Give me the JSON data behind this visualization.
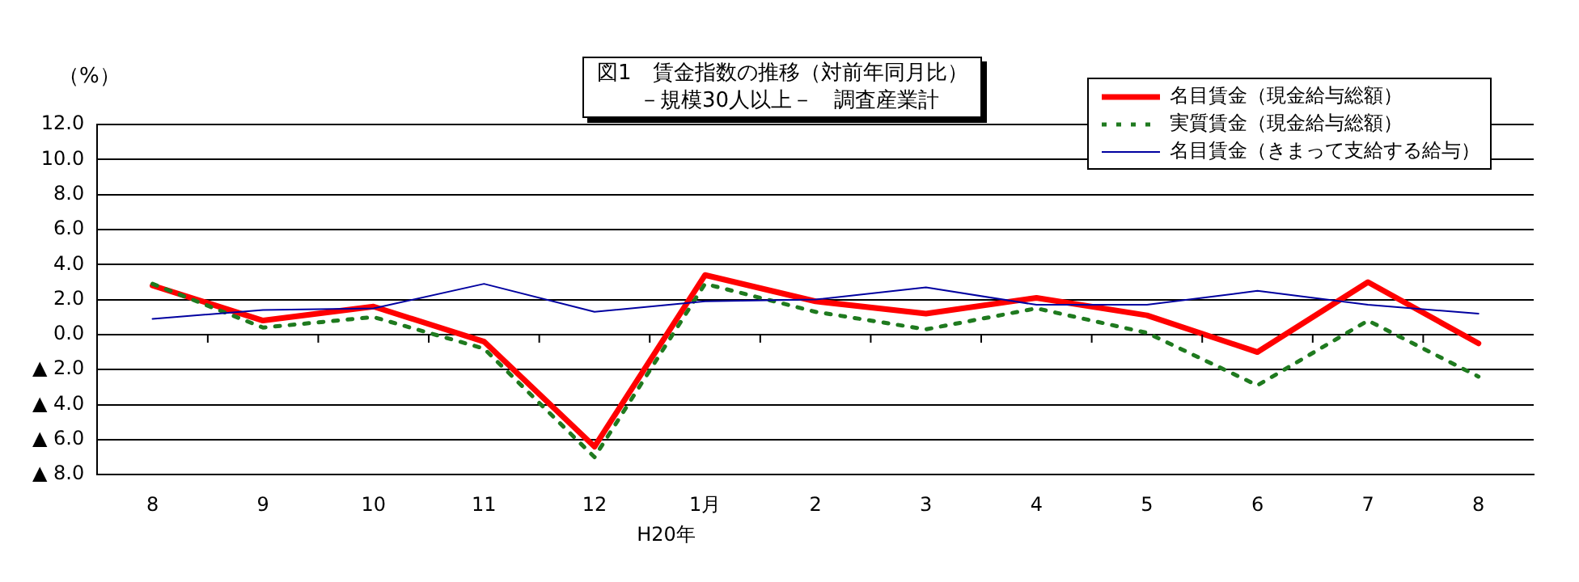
{
  "chart_data": {
    "type": "line",
    "title": "図1　賃金指数の推移（対前年同月比）",
    "subtitle": "－規模30人以上－　調査産業計",
    "ylabel": "（%）",
    "categories": [
      "8",
      "9",
      "10",
      "11",
      "12",
      "1月",
      "2",
      "3",
      "4",
      "5",
      "6",
      "7",
      "8"
    ],
    "series": [
      {
        "name": "名目賃金（現金給与総額）",
        "color": "#ff0000",
        "line_style": "solid",
        "values": [
          2.8,
          0.8,
          1.6,
          -0.4,
          -6.4,
          3.4,
          1.9,
          1.2,
          2.1,
          1.1,
          -1.0,
          3.0,
          -0.5
        ]
      },
      {
        "name": "実質賃金（現金給与総額）",
        "color": "#1f7a1f",
        "line_style": "dotted",
        "values": [
          2.9,
          0.4,
          1.0,
          -0.8,
          -7.0,
          2.9,
          1.3,
          0.3,
          1.5,
          0.1,
          -2.9,
          0.8,
          -2.4
        ]
      },
      {
        "name": "名目賃金（きまって支給する給与）",
        "color": "#0000a0",
        "line_style": "solid",
        "values": [
          0.9,
          1.4,
          1.5,
          2.9,
          1.3,
          1.9,
          2.0,
          2.7,
          1.7,
          1.7,
          2.5,
          1.7,
          1.2
        ]
      }
    ],
    "ylim": [
      -8,
      12
    ],
    "yticks": [
      {
        "value": -8,
        "label": "▲ 8.0"
      },
      {
        "value": -6,
        "label": "▲ 6.0"
      },
      {
        "value": -4,
        "label": "▲ 4.0"
      },
      {
        "value": -2,
        "label": "▲ 2.0"
      },
      {
        "value": 0,
        "label": "0.0"
      },
      {
        "value": 2,
        "label": "2.0"
      },
      {
        "value": 4,
        "label": "4.0"
      },
      {
        "value": 6,
        "label": "6.0"
      },
      {
        "value": 8,
        "label": "8.0"
      },
      {
        "value": 10,
        "label": "10.0"
      },
      {
        "value": 12,
        "label": "12.0"
      }
    ],
    "annotations": [
      "H20年"
    ],
    "grid": "y",
    "legend": "top right",
    "marker": "none"
  }
}
